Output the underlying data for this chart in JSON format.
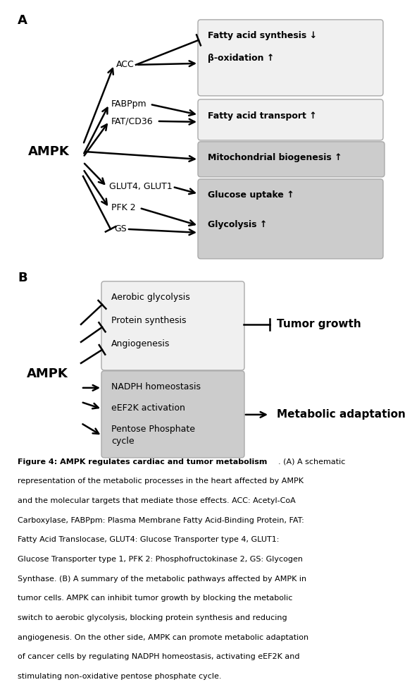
{
  "fig_width": 5.37,
  "fig_height": 8.91,
  "bg_color": "#ffffff",
  "caption_bold": "Figure 4: AMPK regulates cardiac and tumor metabolism",
  "caption_normal": ". (A) A schematic representation of the metabolic processes in the heart affected by AMPK and the molecular targets that mediate those effects. ACC: Acetyl-CoA Carboxylase, FABPpm: Plasma Membrane Fatty Acid-Binding Protein, FAT: Fatty Acid Translocase, GLUT4: Glucose Transporter type 4, GLUT1: Glucose Transporter type 1, PFK 2: Phosphofructokinase 2, GS: Glycogen Synthase. (B) A summary of the metabolic pathways affected by AMPK in tumor cells. AMPK can inhibit tumor growth by blocking the metabolic switch to aerobic glycolysis, blocking protein synthesis and reducing angiogenesis. On the other side, AMPK can promote metabolic adaptation of cancer cells by regulating NADPH homeostasis, activating eEF2K and stimulating non-oxidative pentose phosphate cycle.",
  "box1_fc": "#f0f0f0",
  "box2_fc": "#f0f0f0",
  "box3_fc": "#cccccc",
  "box4_fc": "#cccccc",
  "boxB1_fc": "#f0f0f0",
  "boxB2_fc": "#cccccc",
  "box_ec": "#aaaaaa"
}
